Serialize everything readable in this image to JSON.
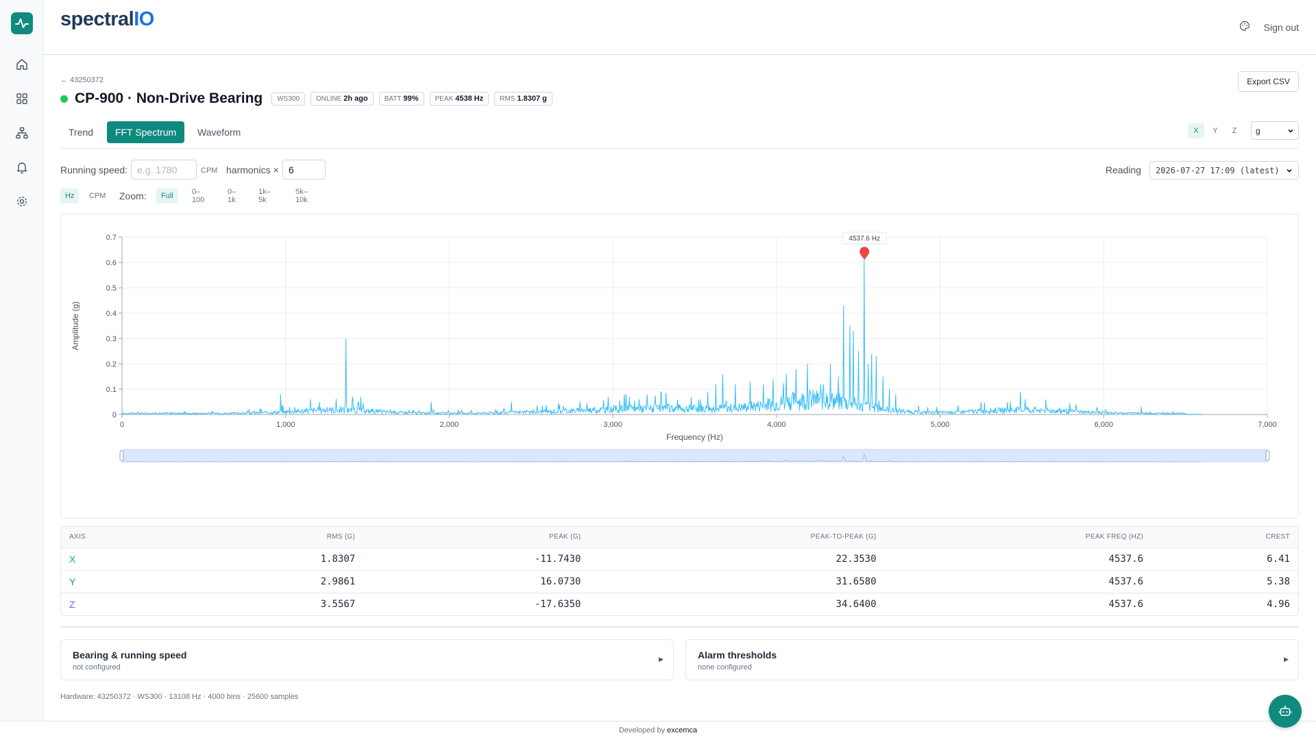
{
  "brand": {
    "name_main": "spectral",
    "name_accent": "IO"
  },
  "topbar": {
    "sign_out": "Sign out"
  },
  "breadcrumb": "← 43250372",
  "device": {
    "title": "CP-900 · Non-Drive Bearing",
    "model": "WS300",
    "status_label": "ONLINE",
    "status_value": "2h ago",
    "batt_label": "BATT",
    "batt_value": "99%",
    "peak_label": "PEAK",
    "peak_value": "4538 Hz",
    "rms_label": "RMS",
    "rms_value": "1.8307 g",
    "status_color": "#22c55e"
  },
  "export_label": "Export CSV",
  "tabs": [
    {
      "label": "Trend",
      "active": false
    },
    {
      "label": "FFT Spectrum",
      "active": true
    },
    {
      "label": "Waveform",
      "active": false
    }
  ],
  "axis_selector": {
    "x": "X",
    "y": "Y",
    "z": "Z",
    "active": "X"
  },
  "unit_select": {
    "value": "g"
  },
  "controls": {
    "running_speed_label": "Running speed:",
    "running_speed_placeholder": "e.g. 1780",
    "cpm_label": "CPM",
    "harmonics_label": "harmonics ×",
    "harmonics_value": "6",
    "reading_label": "Reading",
    "reading_value": "2026-07-27 17:09 (latest)"
  },
  "zoom": {
    "hz": "Hz",
    "cpm": "CPM",
    "label": "Zoom:",
    "full": "Full",
    "r1": "0–100",
    "r2": "0–1k",
    "r3": "1k–5k",
    "r4": "5k–10k",
    "active": "Full"
  },
  "chart_data": {
    "type": "line",
    "xlabel": "Frequency (Hz)",
    "ylabel": "Amplitude (g)",
    "xlim": [
      0,
      7000
    ],
    "ylim": [
      0,
      0.7
    ],
    "x_ticks": [
      "0",
      "1,000",
      "2,000",
      "3,000",
      "4,000",
      "5,000",
      "6,000",
      "7,000"
    ],
    "y_ticks": [
      "0",
      "0.1",
      "0.2",
      "0.3",
      "0.4",
      "0.5",
      "0.6",
      "0.7"
    ],
    "grid": true,
    "series_color": "#38bdf8",
    "marker_color": "#ef4444",
    "marker": {
      "x": 4537.6,
      "y": 0.61,
      "label": "4537.6 Hz"
    },
    "peaks": [
      [
        970,
        0.08
      ],
      [
        1150,
        0.06
      ],
      [
        1370,
        0.3
      ],
      [
        1410,
        0.07
      ],
      [
        1460,
        0.07
      ],
      [
        1890,
        0.05
      ],
      [
        2380,
        0.05
      ],
      [
        2970,
        0.07
      ],
      [
        3080,
        0.08
      ],
      [
        3160,
        0.06
      ],
      [
        3210,
        0.08
      ],
      [
        3480,
        0.07
      ],
      [
        3580,
        0.09
      ],
      [
        3630,
        0.12
      ],
      [
        3670,
        0.16
      ],
      [
        3750,
        0.12
      ],
      [
        3840,
        0.13
      ],
      [
        3920,
        0.12
      ],
      [
        3980,
        0.14
      ],
      [
        4060,
        0.16
      ],
      [
        4120,
        0.18
      ],
      [
        4190,
        0.2
      ],
      [
        4270,
        0.12
      ],
      [
        4330,
        0.2
      ],
      [
        4380,
        0.15
      ],
      [
        4410,
        0.43
      ],
      [
        4450,
        0.35
      ],
      [
        4470,
        0.33
      ],
      [
        4500,
        0.25
      ],
      [
        4537.6,
        0.61
      ],
      [
        4560,
        0.2
      ],
      [
        4580,
        0.24
      ],
      [
        4610,
        0.23
      ],
      [
        4650,
        0.15
      ],
      [
        4690,
        0.1
      ],
      [
        4730,
        0.08
      ],
      [
        5250,
        0.05
      ],
      [
        5490,
        0.09
      ],
      [
        5520,
        0.06
      ],
      [
        5830,
        0.04
      ],
      [
        6230,
        0.03
      ]
    ]
  },
  "table": {
    "headers": [
      "AXIS",
      "RMS (G)",
      "PEAK (G)",
      "PEAK-TO-PEAK (G)",
      "PEAK FREQ (HZ)",
      "CREST"
    ],
    "rows": [
      {
        "axis": "X",
        "rms": "1.8307",
        "peak": "-11.7430",
        "p2p": "22.3530",
        "freq": "4537.6",
        "crest": "6.41",
        "color": "#0ea5a0"
      },
      {
        "axis": "Y",
        "rms": "2.9861",
        "peak": "16.0730",
        "p2p": "31.6580",
        "freq": "4537.6",
        "crest": "5.38",
        "color": "#16a34a"
      },
      {
        "axis": "Z",
        "rms": "3.5567",
        "peak": "-17.6350",
        "p2p": "34.6400",
        "freq": "4537.6",
        "crest": "4.96",
        "color": "#8b5cf6"
      }
    ]
  },
  "panels": {
    "bearing_title": "Bearing & running speed",
    "bearing_sub": "not configured",
    "alarm_title": "Alarm thresholds",
    "alarm_sub": "none configured"
  },
  "hardware": "Hardware: 43250372 · WS300 · 13108 Hz · 4000 bins · 25600 samples",
  "footer": {
    "prefix": "Developed by",
    "name": "excemca"
  },
  "accent_color": "#0f8a7e"
}
